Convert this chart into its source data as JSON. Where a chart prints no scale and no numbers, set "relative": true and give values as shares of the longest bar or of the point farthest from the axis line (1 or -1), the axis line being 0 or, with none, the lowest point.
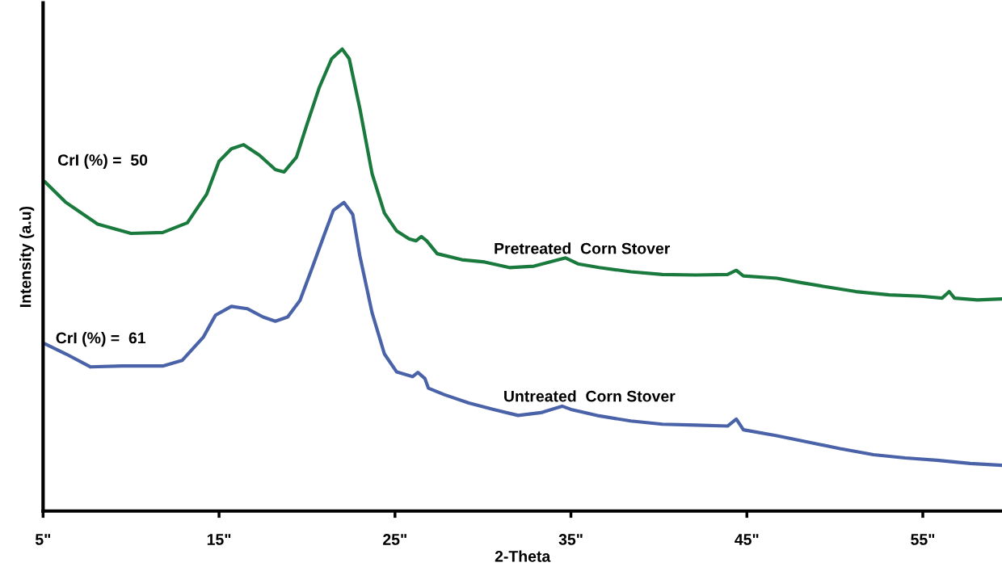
{
  "chart_data": {
    "type": "line",
    "relative": true,
    "xlabel": "2-Theta",
    "ylabel": "Intensity (a.u)",
    "xlim": [
      5,
      59.5
    ],
    "xticks": [
      {
        "value": 5,
        "label": "5\""
      },
      {
        "value": 15,
        "label": "15\""
      },
      {
        "value": 25,
        "label": "25\""
      },
      {
        "value": 35,
        "label": "35\""
      },
      {
        "value": 45,
        "label": "45\""
      },
      {
        "value": 55,
        "label": "55\""
      }
    ],
    "grid": false,
    "legend": false,
    "marker": "none",
    "line_style": "solid",
    "annotations": [
      "CrI (%) =  50",
      "CrI (%) =  61"
    ],
    "series": [
      {
        "name": "Pretreated  Corn Stover",
        "color": "#1a7a3e",
        "x": [
          5.1,
          6.3,
          8.1,
          10.0,
          11.8,
          13.2,
          14.3,
          15.0,
          15.7,
          16.4,
          17.3,
          18.2,
          18.7,
          19.4,
          20.0,
          20.7,
          21.4,
          22.0,
          22.4,
          23.0,
          23.7,
          24.4,
          25.1,
          25.8,
          26.2,
          26.5,
          26.8,
          27.4,
          28.8,
          30.1,
          31.5,
          32.9,
          34.3,
          34.7,
          35.4,
          36.6,
          38.4,
          40.2,
          42.1,
          43.9,
          44.4,
          44.8,
          46.7,
          48.0,
          49.4,
          51.2,
          53.1,
          54.9,
          56.1,
          56.5,
          56.8,
          58.1,
          59.5
        ],
        "values": [
          0.713,
          0.668,
          0.621,
          0.601,
          0.603,
          0.624,
          0.686,
          0.757,
          0.784,
          0.793,
          0.77,
          0.739,
          0.734,
          0.766,
          0.837,
          0.917,
          0.979,
          1,
          0.979,
          0.872,
          0.73,
          0.645,
          0.606,
          0.589,
          0.585,
          0.594,
          0.585,
          0.557,
          0.544,
          0.539,
          0.527,
          0.53,
          0.544,
          0.548,
          0.535,
          0.527,
          0.518,
          0.512,
          0.511,
          0.512,
          0.521,
          0.509,
          0.504,
          0.495,
          0.486,
          0.475,
          0.468,
          0.465,
          0.461,
          0.475,
          0.461,
          0.457,
          0.459
        ]
      },
      {
        "name": "Untreated  Corn Stover",
        "color": "#4a62a8",
        "x": [
          5.1,
          6.3,
          7.7,
          9.5,
          11.8,
          12.9,
          14.1,
          14.8,
          15.7,
          16.6,
          17.5,
          18.2,
          18.9,
          19.6,
          20.3,
          21.0,
          21.5,
          22.1,
          22.6,
          23.0,
          23.7,
          24.4,
          25.1,
          26.0,
          26.3,
          26.7,
          26.9,
          27.8,
          29.2,
          30.6,
          32.0,
          33.3,
          34.5,
          35.0,
          36.6,
          38.4,
          40.2,
          42.1,
          43.9,
          44.4,
          44.8,
          46.7,
          48.5,
          50.3,
          52.2,
          54.0,
          55.8,
          57.7,
          59.5
        ],
        "values": [
          0.362,
          0.34,
          0.312,
          0.314,
          0.314,
          0.326,
          0.376,
          0.424,
          0.443,
          0.438,
          0.42,
          0.411,
          0.42,
          0.456,
          0.527,
          0.6,
          0.651,
          0.668,
          0.642,
          0.553,
          0.429,
          0.34,
          0.301,
          0.291,
          0.3,
          0.287,
          0.266,
          0.252,
          0.234,
          0.22,
          0.207,
          0.213,
          0.227,
          0.22,
          0.206,
          0.195,
          0.188,
          0.186,
          0.184,
          0.199,
          0.176,
          0.163,
          0.149,
          0.135,
          0.122,
          0.115,
          0.11,
          0.103,
          0.099
        ]
      }
    ]
  }
}
